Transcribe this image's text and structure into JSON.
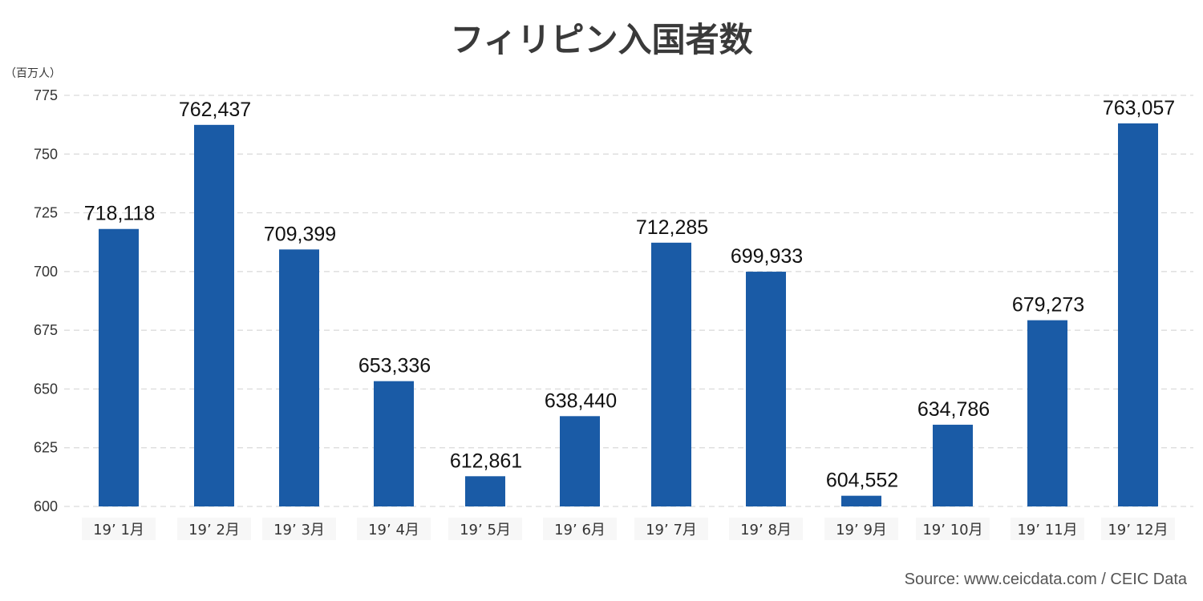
{
  "chart_data": {
    "type": "bar",
    "title": "フィリピン入国者数",
    "unit_label": "（百万人）",
    "categories": [
      "19’ 1月",
      "19’ 2月",
      "19’ 3月",
      "19’ 4月",
      "19’ 5月",
      "19’ 6月",
      "19’ 7月",
      "19’ 8月",
      "19’ 9月",
      "19’ 10月",
      "19’ 11月",
      "19’ 12月"
    ],
    "values": [
      718.118,
      762.437,
      709.399,
      653.336,
      612.861,
      638.44,
      712.285,
      699.933,
      604.552,
      634.786,
      679.273,
      763.057
    ],
    "data_labels": [
      "718,118",
      "762,437",
      "709,399",
      "653,336",
      "612,861",
      "638,440",
      "712,285",
      "699,933",
      "604,552",
      "634,786",
      "679,273",
      "763,057"
    ],
    "y_ticks": [
      "600",
      "625",
      "650",
      "675",
      "700",
      "725",
      "750",
      "775"
    ],
    "ylim": [
      600,
      775
    ],
    "grid": true,
    "bar_color": "#1a5ba6",
    "source": "Source: www.ceicdata.com / CEIC Data"
  }
}
